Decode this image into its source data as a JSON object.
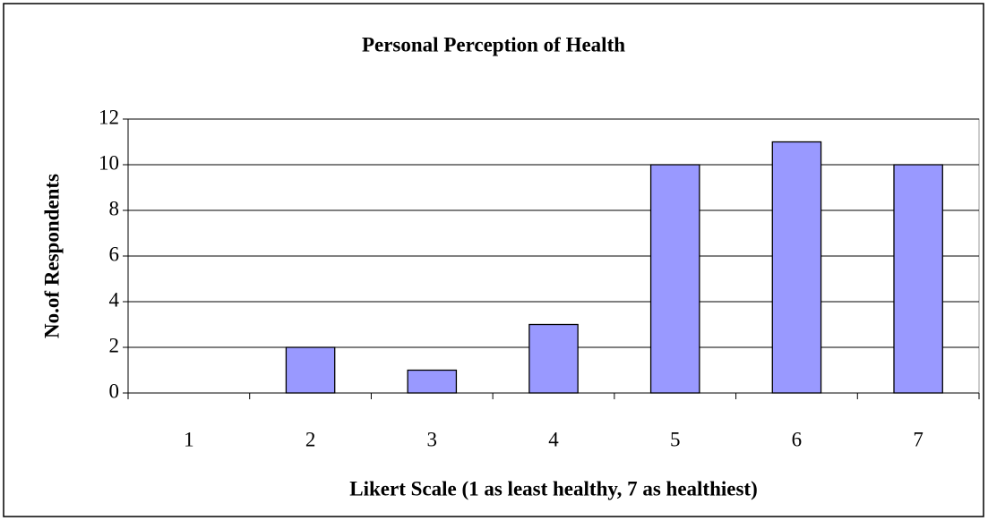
{
  "chart_data": {
    "type": "bar",
    "title": "Personal Perception of Health",
    "x_label": "Likert Scale (1 as least healthy, 7 as healthiest)",
    "y_label": "No.of Respondents",
    "categories": [
      "1",
      "2",
      "3",
      "4",
      "5",
      "6",
      "7"
    ],
    "values": [
      0,
      2,
      1,
      3,
      10,
      11,
      10
    ],
    "color": "#9999ff",
    "ylim": [
      0,
      12
    ],
    "yticks": [
      0,
      2,
      4,
      6,
      8,
      10,
      12
    ],
    "grid": true
  }
}
